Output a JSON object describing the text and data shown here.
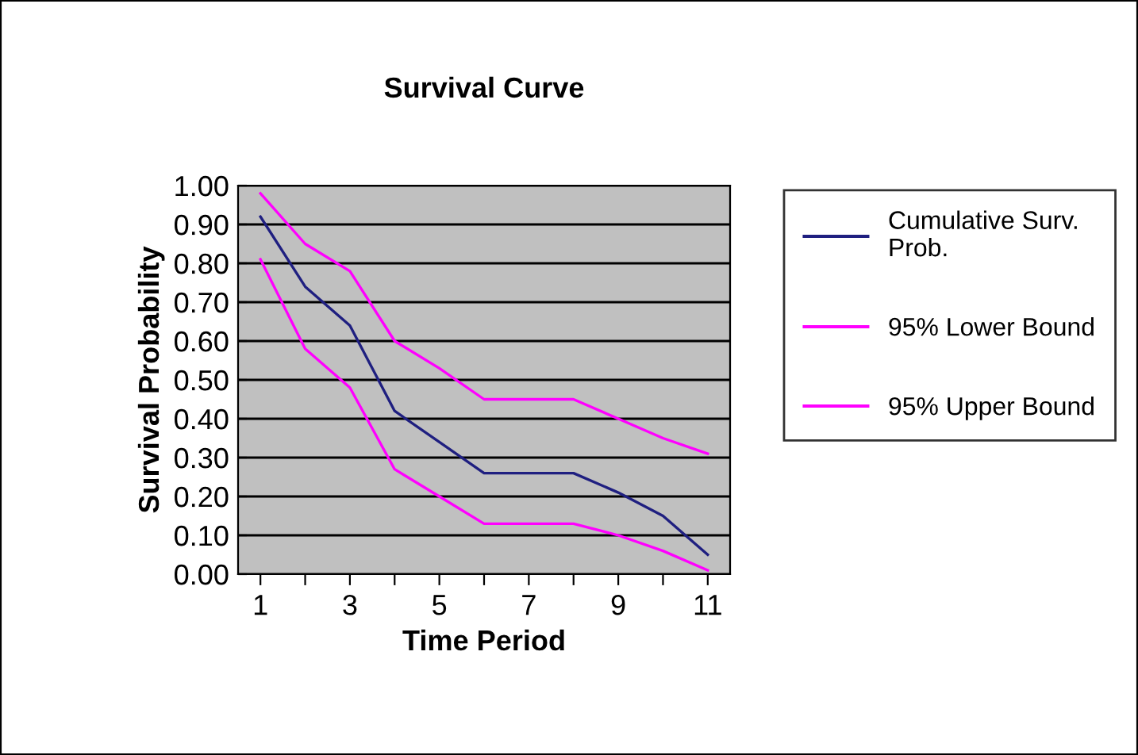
{
  "chart_data": {
    "type": "line",
    "title": "Survival Curve",
    "xlabel": "Time Period",
    "ylabel": "Survival Probability",
    "categories": [
      "1",
      null,
      "3",
      null,
      "5",
      null,
      "7",
      null,
      "9",
      null,
      "11"
    ],
    "series": [
      {
        "name": "Cumulative Surv. Prob.",
        "color": "#1f1f80",
        "values": [
          0.92,
          0.74,
          0.64,
          0.42,
          0.34,
          0.26,
          0.26,
          0.26,
          0.21,
          0.15,
          0.05
        ]
      },
      {
        "name": "95% Lower Bound",
        "color": "#ff00ff",
        "values": [
          0.81,
          0.58,
          0.48,
          0.27,
          0.2,
          0.13,
          0.13,
          0.13,
          0.1,
          0.06,
          0.01
        ]
      },
      {
        "name": "95% Upper Bound",
        "color": "#ff00ff",
        "values": [
          0.98,
          0.85,
          0.78,
          0.6,
          0.53,
          0.45,
          0.45,
          0.45,
          0.4,
          0.35,
          0.31
        ]
      }
    ],
    "ylim": [
      0,
      1
    ],
    "yticks": [
      {
        "value": 0,
        "label": "0.00"
      },
      {
        "value": 0.1,
        "label": "0.10"
      },
      {
        "value": 0.2,
        "label": "0.20"
      },
      {
        "value": 0.3,
        "label": "0.30"
      },
      {
        "value": 0.4,
        "label": "0.40"
      },
      {
        "value": 0.5,
        "label": "0.50"
      },
      {
        "value": 0.6,
        "label": "0.60"
      },
      {
        "value": 0.7,
        "label": "0.70"
      },
      {
        "value": 0.8,
        "label": "0.80"
      },
      {
        "value": 0.9,
        "label": "0.90"
      },
      {
        "value": 1,
        "label": "1.00"
      }
    ],
    "grid": "y",
    "legend": "right",
    "marker": "none",
    "line_style": "solid"
  }
}
